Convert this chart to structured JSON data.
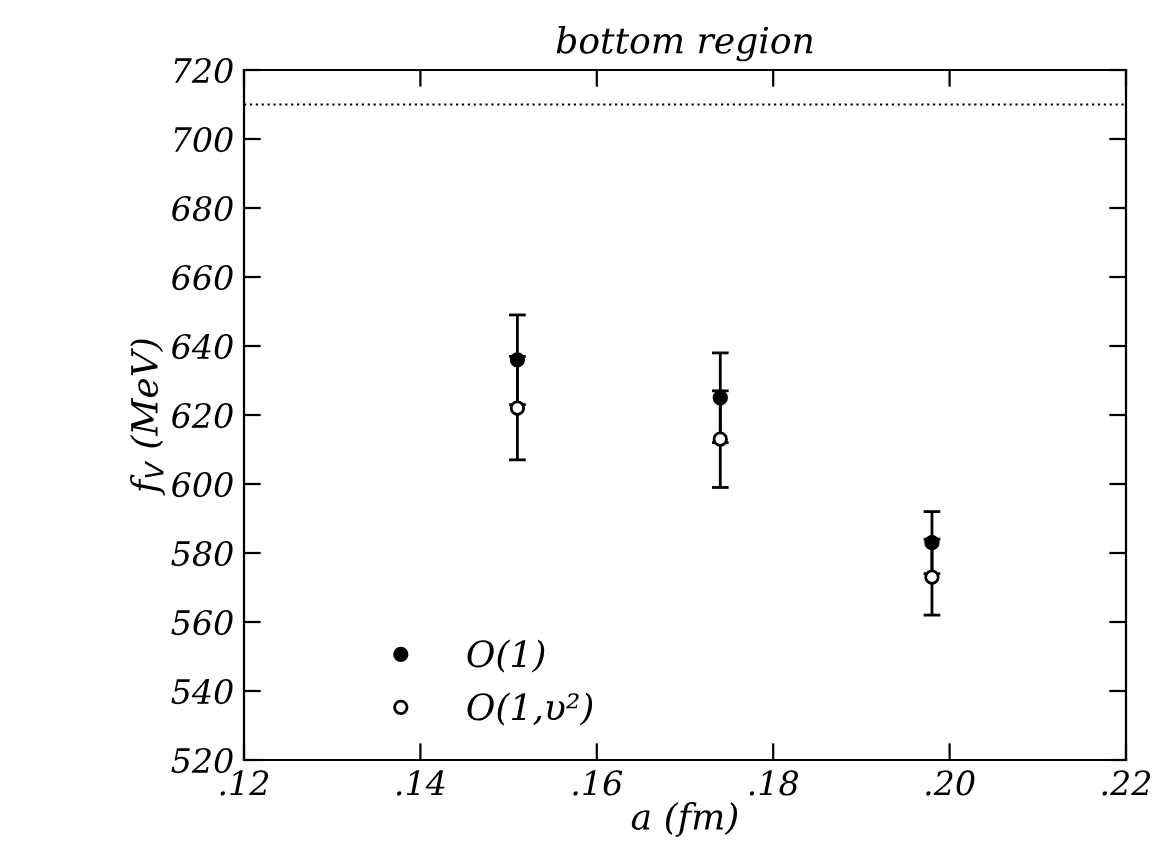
{
  "chart_data": {
    "type": "scatter",
    "title": "bottom region",
    "xlabel": "a (fm)",
    "ylabel": "f$_{V}$ (MeV)",
    "xlim": [
      0.12,
      0.22
    ],
    "xticks": [
      {
        "value": 0.12,
        "label": ".12"
      },
      {
        "value": 0.14,
        "label": ".14"
      },
      {
        "value": 0.16,
        "label": ".16"
      },
      {
        "value": 0.18,
        "label": ".18"
      },
      {
        "value": 0.2,
        "label": ".20"
      },
      {
        "value": 0.22,
        "label": ".22"
      }
    ],
    "ylim": [
      520,
      720
    ],
    "yticks": [
      520,
      540,
      560,
      580,
      600,
      620,
      640,
      660,
      680,
      700,
      720
    ],
    "series": [
      {
        "name": "O(1)",
        "color": "#000000",
        "x": [
          0.151,
          0.174,
          0.198
        ],
        "values": [
          636,
          625,
          583
        ],
        "errors": [
          13,
          13,
          9
        ],
        "marker": "circle"
      },
      {
        "name": "O(1,υ²)",
        "color": "#000000",
        "x": [
          0.151,
          0.174,
          0.198
        ],
        "values": [
          622,
          613,
          573
        ],
        "errors": [
          15,
          14,
          11
        ],
        "marker": "circle"
      }
    ],
    "ref_lines": [
      {
        "axis": "y",
        "value": 710,
        "line_style": "dotted",
        "color": "#000000"
      }
    ],
    "legend": "bottom left",
    "grid": false
  }
}
